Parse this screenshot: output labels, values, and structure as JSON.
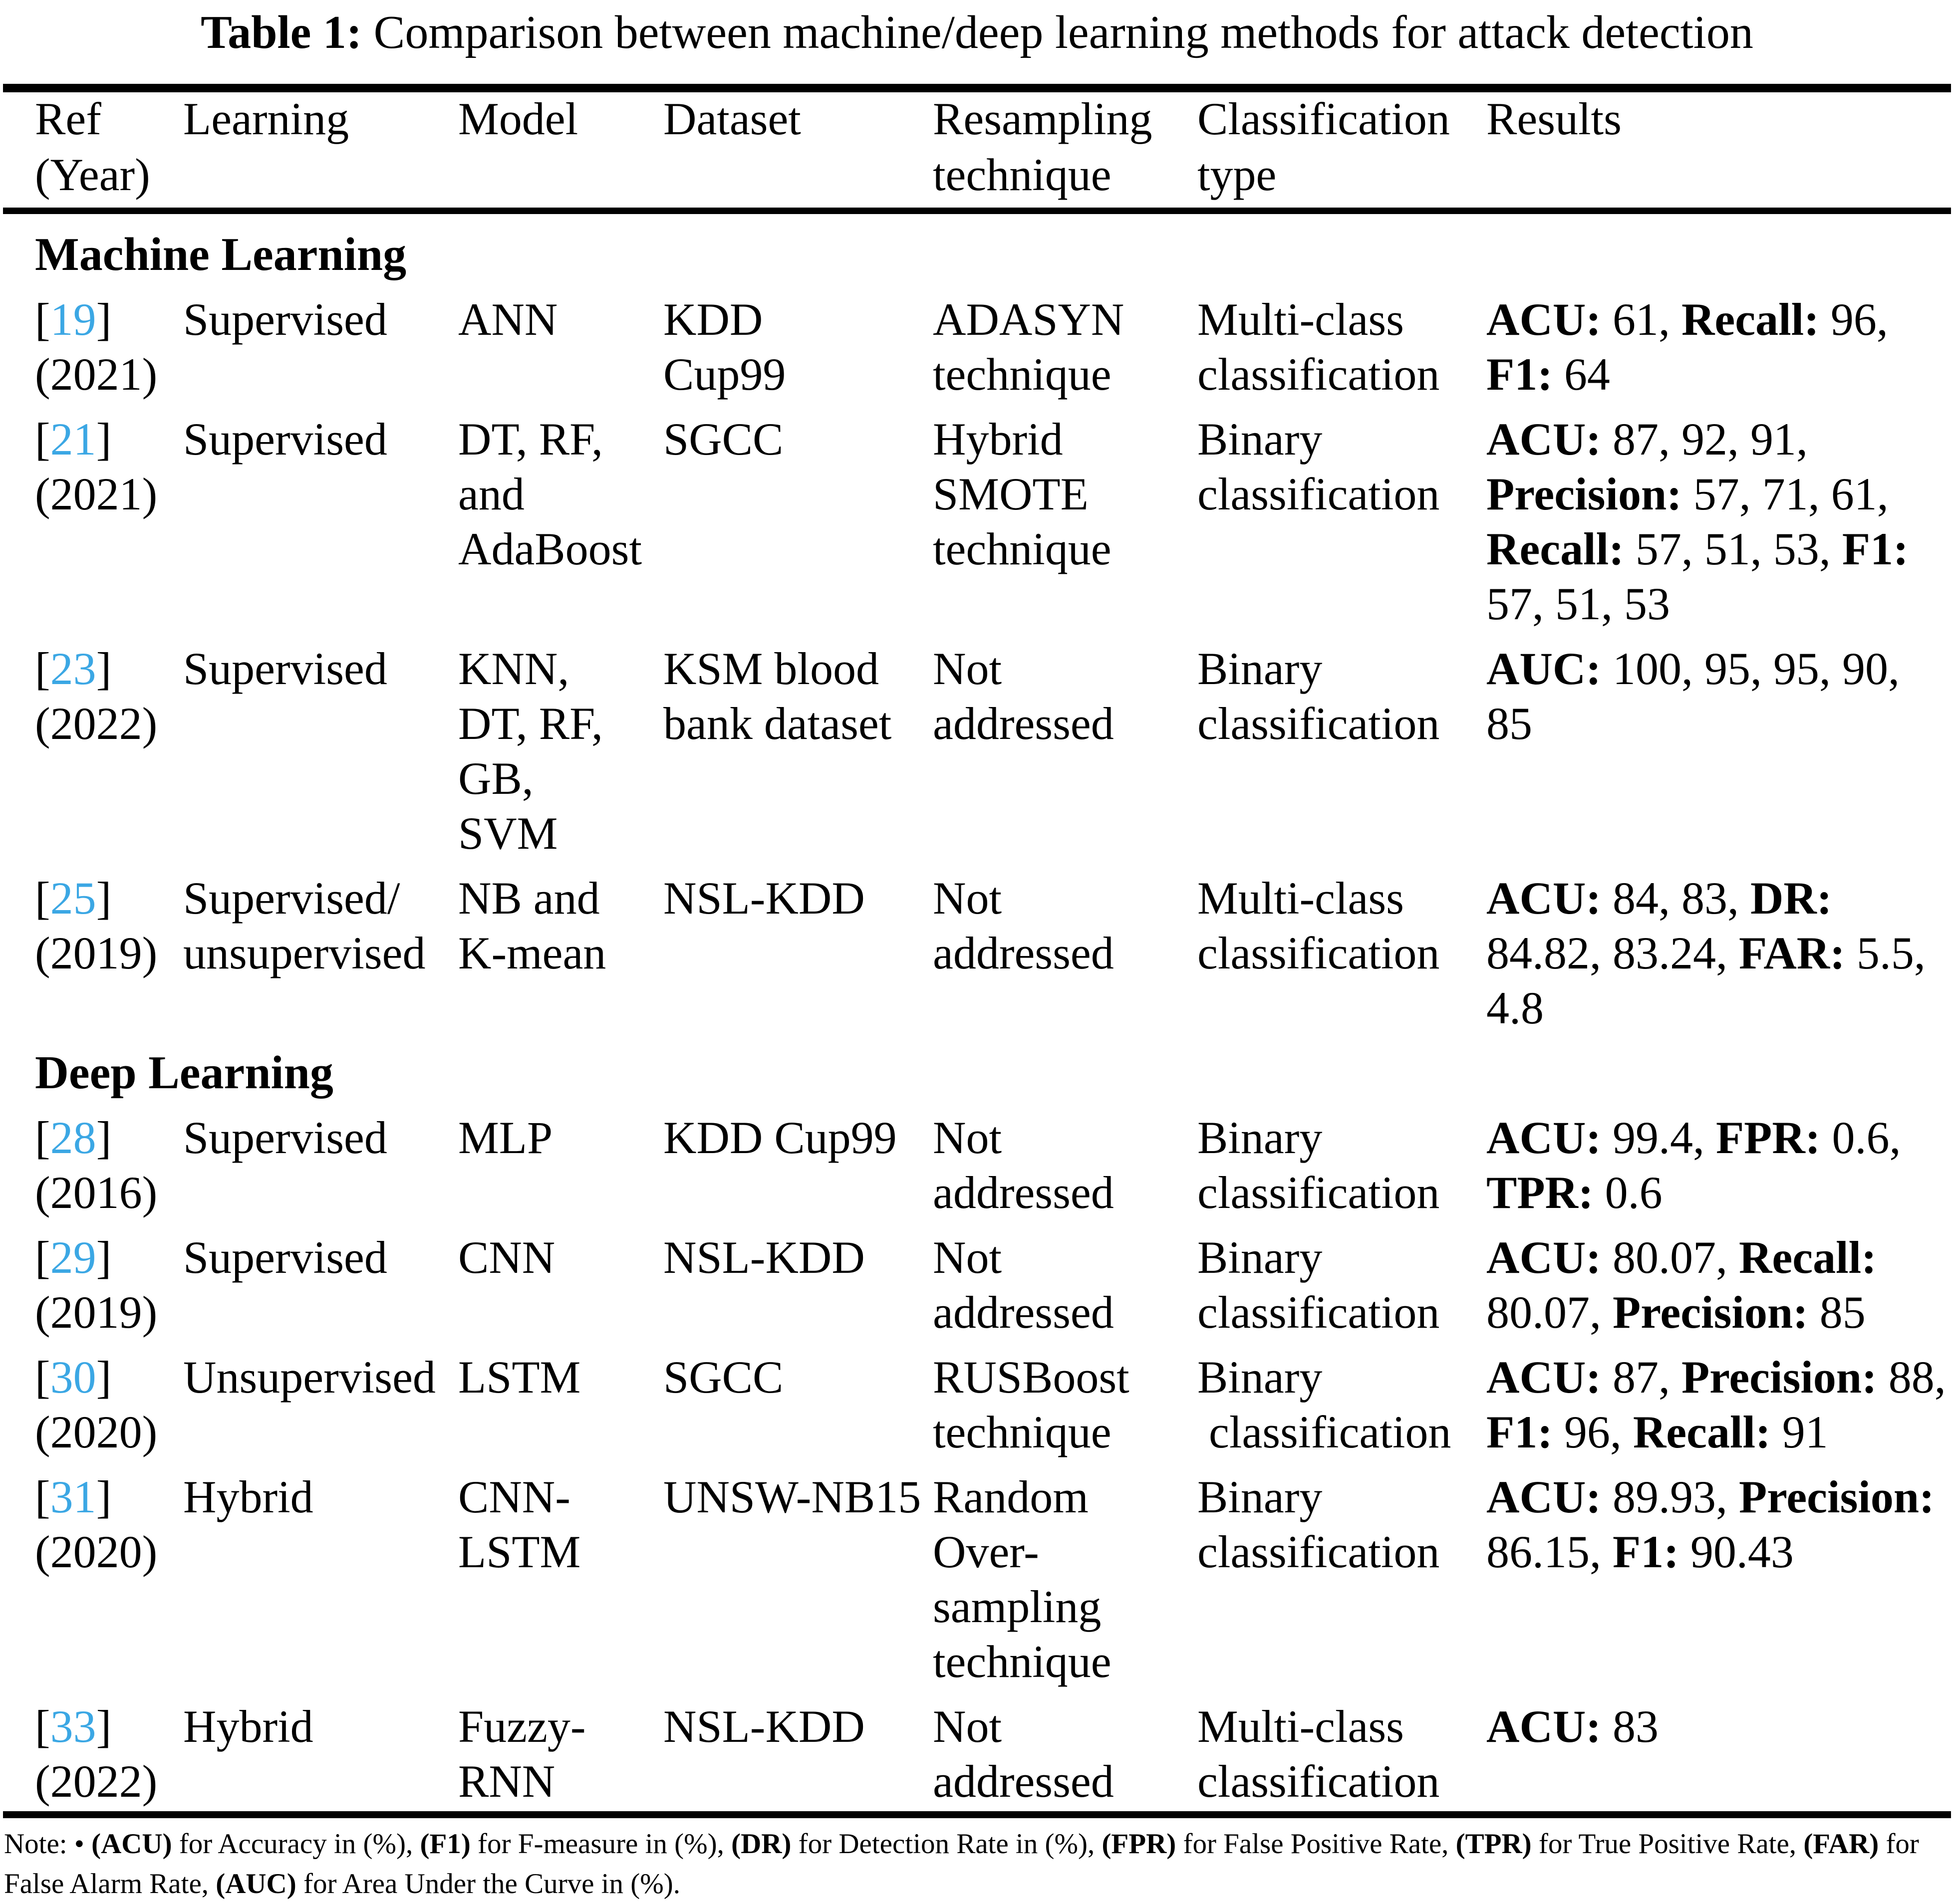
{
  "accent_color": "#3ba7e4",
  "title": {
    "label": "Table 1:",
    "text": " Comparison between machine/deep learning methods for attack detection"
  },
  "header": {
    "columns": [
      {
        "id": "ref",
        "lines": [
          "Ref",
          "(Year)"
        ]
      },
      {
        "id": "learning",
        "lines": [
          "Learning"
        ]
      },
      {
        "id": "model",
        "lines": [
          "Model"
        ]
      },
      {
        "id": "dataset",
        "lines": [
          "Dataset"
        ]
      },
      {
        "id": "resampling",
        "lines": [
          "Resampling",
          "technique"
        ]
      },
      {
        "id": "classification",
        "lines": [
          "Classification",
          "type"
        ]
      },
      {
        "id": "results",
        "lines": [
          "Results"
        ]
      }
    ]
  },
  "sections": [
    {
      "heading": "Machine Learning",
      "rows": [
        {
          "ref_number": "19",
          "year": "(2021)",
          "learning": [
            "Supervised"
          ],
          "model": [
            "ANN"
          ],
          "dataset": [
            "KDD",
            "Cup99"
          ],
          "resampling": [
            "ADASYN",
            "technique"
          ],
          "classification": [
            "Multi-class",
            "classification"
          ],
          "results": [
            [
              {
                "b": "ACU:"
              },
              {
                "t": " 61, "
              },
              {
                "b": "Recall:"
              },
              {
                "t": " 96,"
              }
            ],
            [
              {
                "b": "F1:"
              },
              {
                "t": " 64"
              }
            ]
          ]
        },
        {
          "ref_number": "21",
          "year": "(2021)",
          "learning": [
            "Supervised"
          ],
          "model": [
            "DT, RF,",
            "and",
            "AdaBoost"
          ],
          "dataset": [
            "SGCC"
          ],
          "resampling": [
            "Hybrid",
            "SMOTE",
            "technique"
          ],
          "classification": [
            "Binary",
            "classification"
          ],
          "results": [
            [
              {
                "b": "ACU:"
              },
              {
                "t": " 87, 92, 91,"
              }
            ],
            [
              {
                "b": "Precision:"
              },
              {
                "t": " 57, 71, 61,"
              }
            ],
            [
              {
                "b": "Recall:"
              },
              {
                "t": " 57, 51, 53, "
              },
              {
                "b": "F1:"
              }
            ],
            [
              {
                "t": "57, 51, 53"
              }
            ]
          ]
        },
        {
          "ref_number": "23",
          "year": "(2022)",
          "learning": [
            "Supervised"
          ],
          "model": [
            "KNN,",
            "DT, RF,",
            "GB,",
            "SVM"
          ],
          "dataset": [
            "KSM blood",
            "bank dataset"
          ],
          "resampling": [
            "Not",
            "addressed"
          ],
          "classification": [
            "Binary",
            "classification"
          ],
          "results": [
            [
              {
                "b": "AUC:"
              },
              {
                "t": " 100, 95, 95, 90,"
              }
            ],
            [
              {
                "t": "85"
              }
            ]
          ]
        },
        {
          "ref_number": "25",
          "year": "(2019)",
          "learning": [
            "Supervised/",
            "unsupervised"
          ],
          "model": [
            "NB and",
            "K-mean"
          ],
          "dataset": [
            "NSL-KDD"
          ],
          "resampling": [
            "Not",
            "addressed"
          ],
          "classification": [
            "Multi-class",
            "classification"
          ],
          "results": [
            [
              {
                "b": "ACU:"
              },
              {
                "t": " 84, 83, "
              },
              {
                "b": "DR:"
              }
            ],
            [
              {
                "t": "84.82, 83.24, "
              },
              {
                "b": "FAR:"
              },
              {
                "t": " 5.5,"
              }
            ],
            [
              {
                "t": "4.8"
              }
            ]
          ]
        }
      ]
    },
    {
      "heading": "Deep Learning",
      "rows": [
        {
          "ref_number": "28",
          "year": "(2016)",
          "learning": [
            "Supervised"
          ],
          "model": [
            "MLP"
          ],
          "dataset": [
            "KDD Cup99"
          ],
          "resampling": [
            "Not",
            "addressed"
          ],
          "classification": [
            "Binary",
            "classification"
          ],
          "results": [
            [
              {
                "b": "ACU:"
              },
              {
                "t": " 99.4, "
              },
              {
                "b": "FPR:"
              },
              {
                "t": " 0.6,"
              }
            ],
            [
              {
                "b": "TPR:"
              },
              {
                "t": " 0.6"
              }
            ]
          ]
        },
        {
          "ref_number": "29",
          "year": "(2019)",
          "learning": [
            "Supervised"
          ],
          "model": [
            "CNN"
          ],
          "dataset": [
            "NSL-KDD"
          ],
          "resampling": [
            "Not",
            "addressed"
          ],
          "classification": [
            "Binary",
            "classification"
          ],
          "results": [
            [
              {
                "b": "ACU:"
              },
              {
                "t": " 80.07, "
              },
              {
                "b": "Recall:"
              }
            ],
            [
              {
                "t": "80.07, "
              },
              {
                "b": "Precision:"
              },
              {
                "t": " 85"
              }
            ]
          ]
        },
        {
          "ref_number": "30",
          "year": "(2020)",
          "learning": [
            "Unsupervised"
          ],
          "model": [
            "LSTM"
          ],
          "dataset": [
            "SGCC"
          ],
          "resampling": [
            "RUSBoost",
            "technique"
          ],
          "classification": [
            "Binary",
            " classification"
          ],
          "results": [
            [
              {
                "b": "ACU:"
              },
              {
                "t": " 87, "
              },
              {
                "b": "Precision:"
              },
              {
                "t": " 88,"
              }
            ],
            [
              {
                "b": "F1:"
              },
              {
                "t": " 96, "
              },
              {
                "b": "Recall:"
              },
              {
                "t": " 91"
              }
            ]
          ]
        },
        {
          "ref_number": "31",
          "year": "(2020)",
          "learning": [
            "Hybrid"
          ],
          "model": [
            "CNN-",
            "LSTM"
          ],
          "dataset": [
            "UNSW-NB15"
          ],
          "resampling": [
            "Random",
            "Over-",
            "sampling",
            "technique"
          ],
          "classification": [
            "Binary",
            "classification"
          ],
          "results": [
            [
              {
                "b": "ACU:"
              },
              {
                "t": " 89.93, "
              },
              {
                "b": "Precision:"
              }
            ],
            [
              {
                "t": "86.15, "
              },
              {
                "b": "F1:"
              },
              {
                "t": " 90.43"
              }
            ]
          ]
        },
        {
          "ref_number": "33",
          "year": "(2022)",
          "learning": [
            "Hybrid"
          ],
          "model": [
            "Fuzzy-",
            "RNN"
          ],
          "dataset": [
            "NSL-KDD"
          ],
          "resampling": [
            "Not",
            "addressed"
          ],
          "classification": [
            "Multi-class",
            "classification"
          ],
          "results": [
            [
              {
                "b": "ACU:"
              },
              {
                "t": " 83"
              }
            ]
          ]
        }
      ]
    }
  ],
  "note": {
    "segments": [
      {
        "t": "Note: • "
      },
      {
        "b": "(ACU)"
      },
      {
        "t": " for Accuracy in (%), "
      },
      {
        "b": "(F1)"
      },
      {
        "t": " for F-measure in (%), "
      },
      {
        "b": "(DR)"
      },
      {
        "t": " for Detection Rate in (%), "
      },
      {
        "b": "(FPR)"
      },
      {
        "t": " for False Positive Rate, "
      },
      {
        "b": "(TPR)"
      },
      {
        "t": " for True Positive Rate, "
      },
      {
        "b": "(FAR)"
      },
      {
        "t": " for False Alarm Rate, "
      },
      {
        "b": "(AUC)"
      },
      {
        "t": " for Area Under the Curve in (%)."
      }
    ]
  }
}
